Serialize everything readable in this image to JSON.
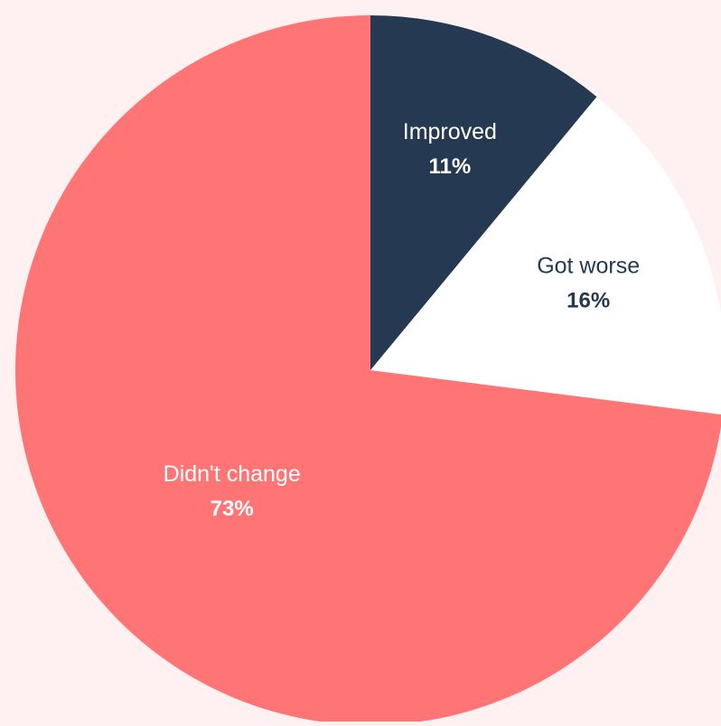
{
  "colors": {
    "background": "#fff1f1",
    "improved": "#253a52",
    "got_worse": "#ffffff",
    "didnt_change": "#ff7575"
  },
  "chart_data": {
    "type": "pie",
    "start_angle_deg": 0,
    "direction": "clockwise",
    "slices": [
      {
        "label": "Improved",
        "value": 11,
        "value_label": "11%",
        "color": "#253a52",
        "text_color": "#ffffff",
        "value_color": "#ffffff"
      },
      {
        "label": "Got worse",
        "value": 16,
        "value_label": "16%",
        "color": "#ffffff",
        "text_color": "#253a52",
        "value_color": "#253a52"
      },
      {
        "label": "Didn't change",
        "value": 73,
        "value_label": "73%",
        "color": "#ff7575",
        "text_color": "#ffffff",
        "value_color": "#ffffff"
      }
    ]
  }
}
